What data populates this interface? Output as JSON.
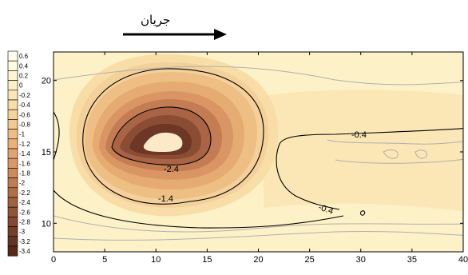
{
  "chart_data": {
    "type": "contour",
    "title": "",
    "xlabel": "",
    "ylabel": "",
    "xlim": [
      0,
      40
    ],
    "ylim": [
      8,
      22
    ],
    "x_ticks": [
      0,
      5,
      10,
      15,
      20,
      25,
      30,
      35,
      40
    ],
    "y_ticks": [
      10,
      15,
      20
    ],
    "flow_label": "جریان",
    "flow_direction": "right",
    "legend_levels": [
      "0.6",
      "0.4",
      "0.2",
      "0",
      "-0.2",
      "-0.4",
      "-0.6",
      "-0.8",
      "-1",
      "-1.2",
      "-1.4",
      "-1.6",
      "-1.8",
      "-2",
      "-2.2",
      "-2.4",
      "-2.6",
      "-2.8",
      "-3",
      "-3.2",
      "-3.4"
    ],
    "legend_colors": [
      "#fffbea",
      "#fffae0",
      "#fff5d0",
      "#fdf0c4",
      "#fbe7b6",
      "#f9dea8",
      "#f6d39b",
      "#f2c98e",
      "#efbd82",
      "#eab077",
      "#e3a36e",
      "#db9766",
      "#cf8a5b",
      "#c27c50",
      "#b26e47",
      "#a3603f",
      "#945438",
      "#854831",
      "#763d29",
      "#683222",
      "#5a281b"
    ],
    "contour_labels": [
      {
        "text": "-0.4",
        "x": 29.7,
        "y": 15.5
      },
      {
        "text": "-0.4",
        "x": 27.0,
        "y": 10.7
      },
      {
        "text": "-1.4",
        "x": 10.5,
        "y": 11.1
      },
      {
        "text": "-2.4",
        "x": 12.0,
        "y": 13.9
      }
    ],
    "peak": {
      "x": 11.5,
      "y": 15.5,
      "value": -3.3
    },
    "grid": false,
    "legend_position": "left"
  }
}
